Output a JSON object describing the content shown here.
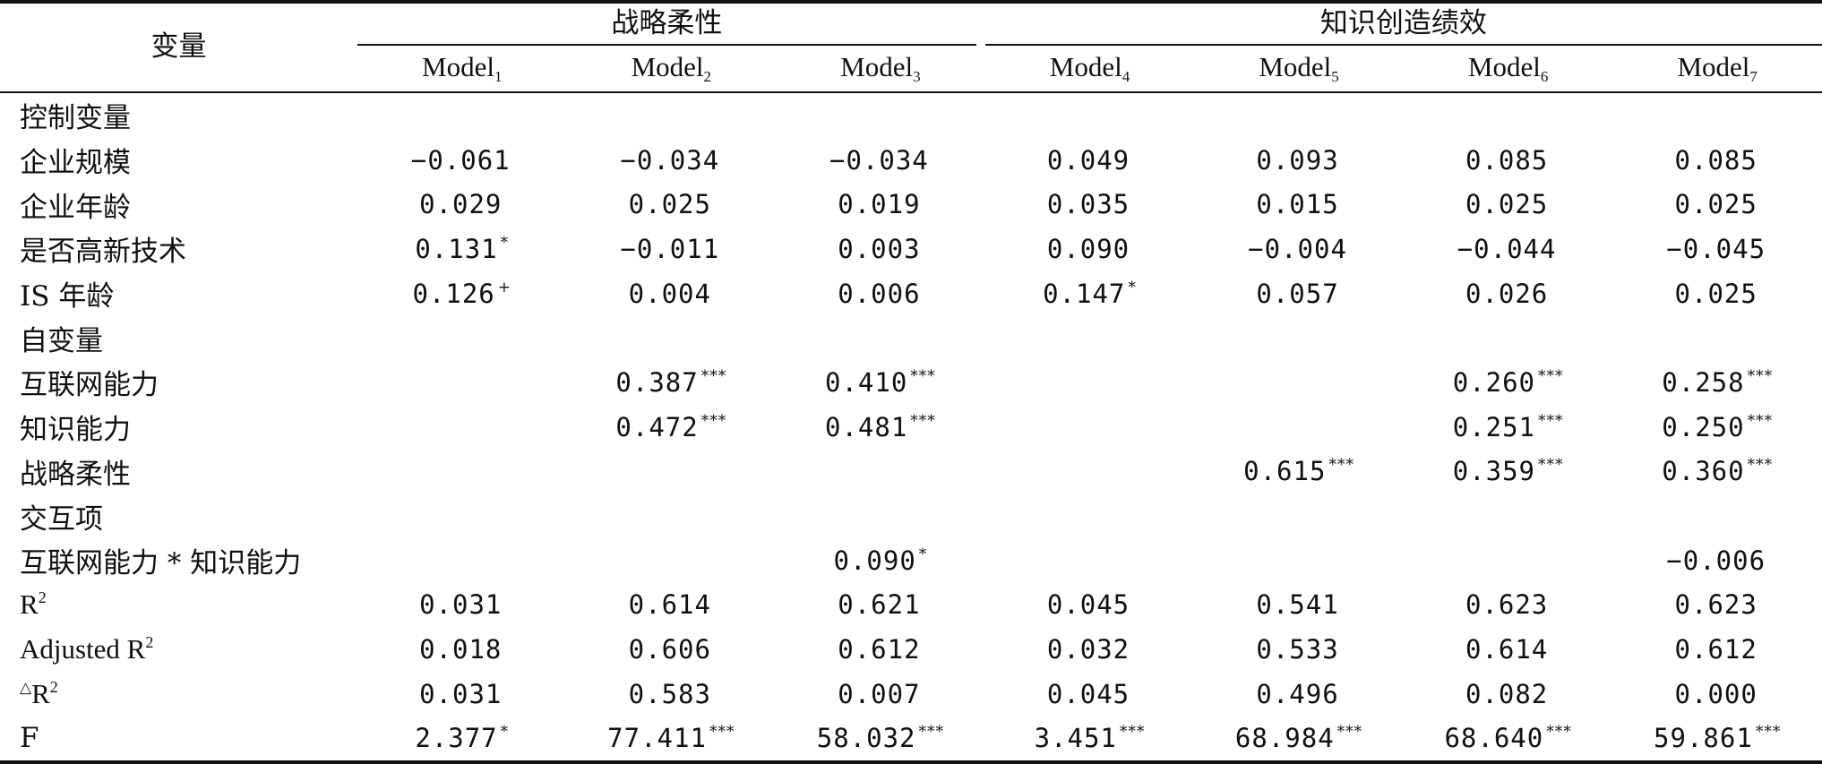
{
  "table": {
    "var_header": "变量",
    "group1": "战略柔性",
    "group2": "知识创造绩效",
    "models": [
      {
        "base": "Model",
        "sub": "1"
      },
      {
        "base": "Model",
        "sub": "2"
      },
      {
        "base": "Model",
        "sub": "3"
      },
      {
        "base": "Model",
        "sub": "4"
      },
      {
        "base": "Model",
        "sub": "5"
      },
      {
        "base": "Model",
        "sub": "6"
      },
      {
        "base": "Model",
        "sub": "7"
      }
    ],
    "rows": [
      {
        "label": "控制变量",
        "section": true,
        "cells": [
          "",
          "",
          "",
          "",
          "",
          "",
          ""
        ],
        "stars": [
          "",
          "",
          "",
          "",
          "",
          "",
          ""
        ]
      },
      {
        "label": "企业规模",
        "cells": [
          "−0.061",
          "−0.034",
          "−0.034",
          "0.049",
          "0.093",
          "0.085",
          "0.085"
        ],
        "stars": [
          "",
          "",
          "",
          "",
          "",
          "",
          ""
        ]
      },
      {
        "label": "企业年龄",
        "cells": [
          "0.029",
          "0.025",
          "0.019",
          "0.035",
          "0.015",
          "0.025",
          "0.025"
        ],
        "stars": [
          "",
          "",
          "",
          "",
          "",
          "",
          ""
        ]
      },
      {
        "label": "是否高新技术",
        "cells": [
          "0.131",
          "−0.011",
          "0.003",
          "0.090",
          "−0.004",
          "−0.044",
          "−0.045"
        ],
        "stars": [
          "*",
          "",
          "",
          "",
          "",
          "",
          ""
        ]
      },
      {
        "label": "IS 年龄",
        "cells": [
          "0.126",
          "0.004",
          "0.006",
          "0.147",
          "0.057",
          "0.026",
          "0.025"
        ],
        "stars": [
          "+",
          "",
          "",
          "*",
          "",
          "",
          ""
        ]
      },
      {
        "label": "自变量",
        "section": true,
        "cells": [
          "",
          "",
          "",
          "",
          "",
          "",
          ""
        ],
        "stars": [
          "",
          "",
          "",
          "",
          "",
          "",
          ""
        ]
      },
      {
        "label": "互联网能力",
        "cells": [
          "",
          "0.387",
          "0.410",
          "",
          "",
          "0.260",
          "0.258"
        ],
        "stars": [
          "",
          "***",
          "***",
          "",
          "",
          "***",
          "***"
        ]
      },
      {
        "label": "知识能力",
        "cells": [
          "",
          "0.472",
          "0.481",
          "",
          "",
          "0.251",
          "0.250"
        ],
        "stars": [
          "",
          "***",
          "***",
          "",
          "",
          "***",
          "***"
        ]
      },
      {
        "label": "战略柔性",
        "cells": [
          "",
          "",
          "",
          "",
          "0.615",
          "0.359",
          "0.360"
        ],
        "stars": [
          "",
          "",
          "",
          "",
          "***",
          "***",
          "***"
        ]
      },
      {
        "label": "交互项",
        "section": true,
        "cells": [
          "",
          "",
          "",
          "",
          "",
          "",
          ""
        ],
        "stars": [
          "",
          "",
          "",
          "",
          "",
          "",
          ""
        ]
      },
      {
        "label": "互联网能力 * 知识能力",
        "cells": [
          "",
          "",
          "0.090",
          "",
          "",
          "",
          "−0.006"
        ],
        "stars": [
          "",
          "",
          "*",
          "",
          "",
          "",
          ""
        ]
      },
      {
        "label_base": "R",
        "label_sup": "2",
        "cells": [
          "0.031",
          "0.614",
          "0.621",
          "0.045",
          "0.541",
          "0.623",
          "0.623"
        ],
        "stars": [
          "",
          "",
          "",
          "",
          "",
          "",
          ""
        ]
      },
      {
        "label_base": "Adjusted R",
        "label_sup": "2",
        "cells": [
          "0.018",
          "0.606",
          "0.612",
          "0.032",
          "0.533",
          "0.614",
          "0.612"
        ],
        "stars": [
          "",
          "",
          "",
          "",
          "",
          "",
          ""
        ]
      },
      {
        "label_pre": "△",
        "label_base": "R",
        "label_sup": "2",
        "cells": [
          "0.031",
          "0.583",
          "0.007",
          "0.045",
          "0.496",
          "0.082",
          "0.000"
        ],
        "stars": [
          "",
          "",
          "",
          "",
          "",
          "",
          ""
        ]
      },
      {
        "label": "F",
        "cells": [
          "2.377",
          "77.411",
          "58.032",
          "3.451",
          "68.984",
          "68.640",
          "59.861"
        ],
        "stars": [
          "*",
          "***",
          "***",
          "***",
          "***",
          "***",
          "***"
        ]
      }
    ]
  }
}
